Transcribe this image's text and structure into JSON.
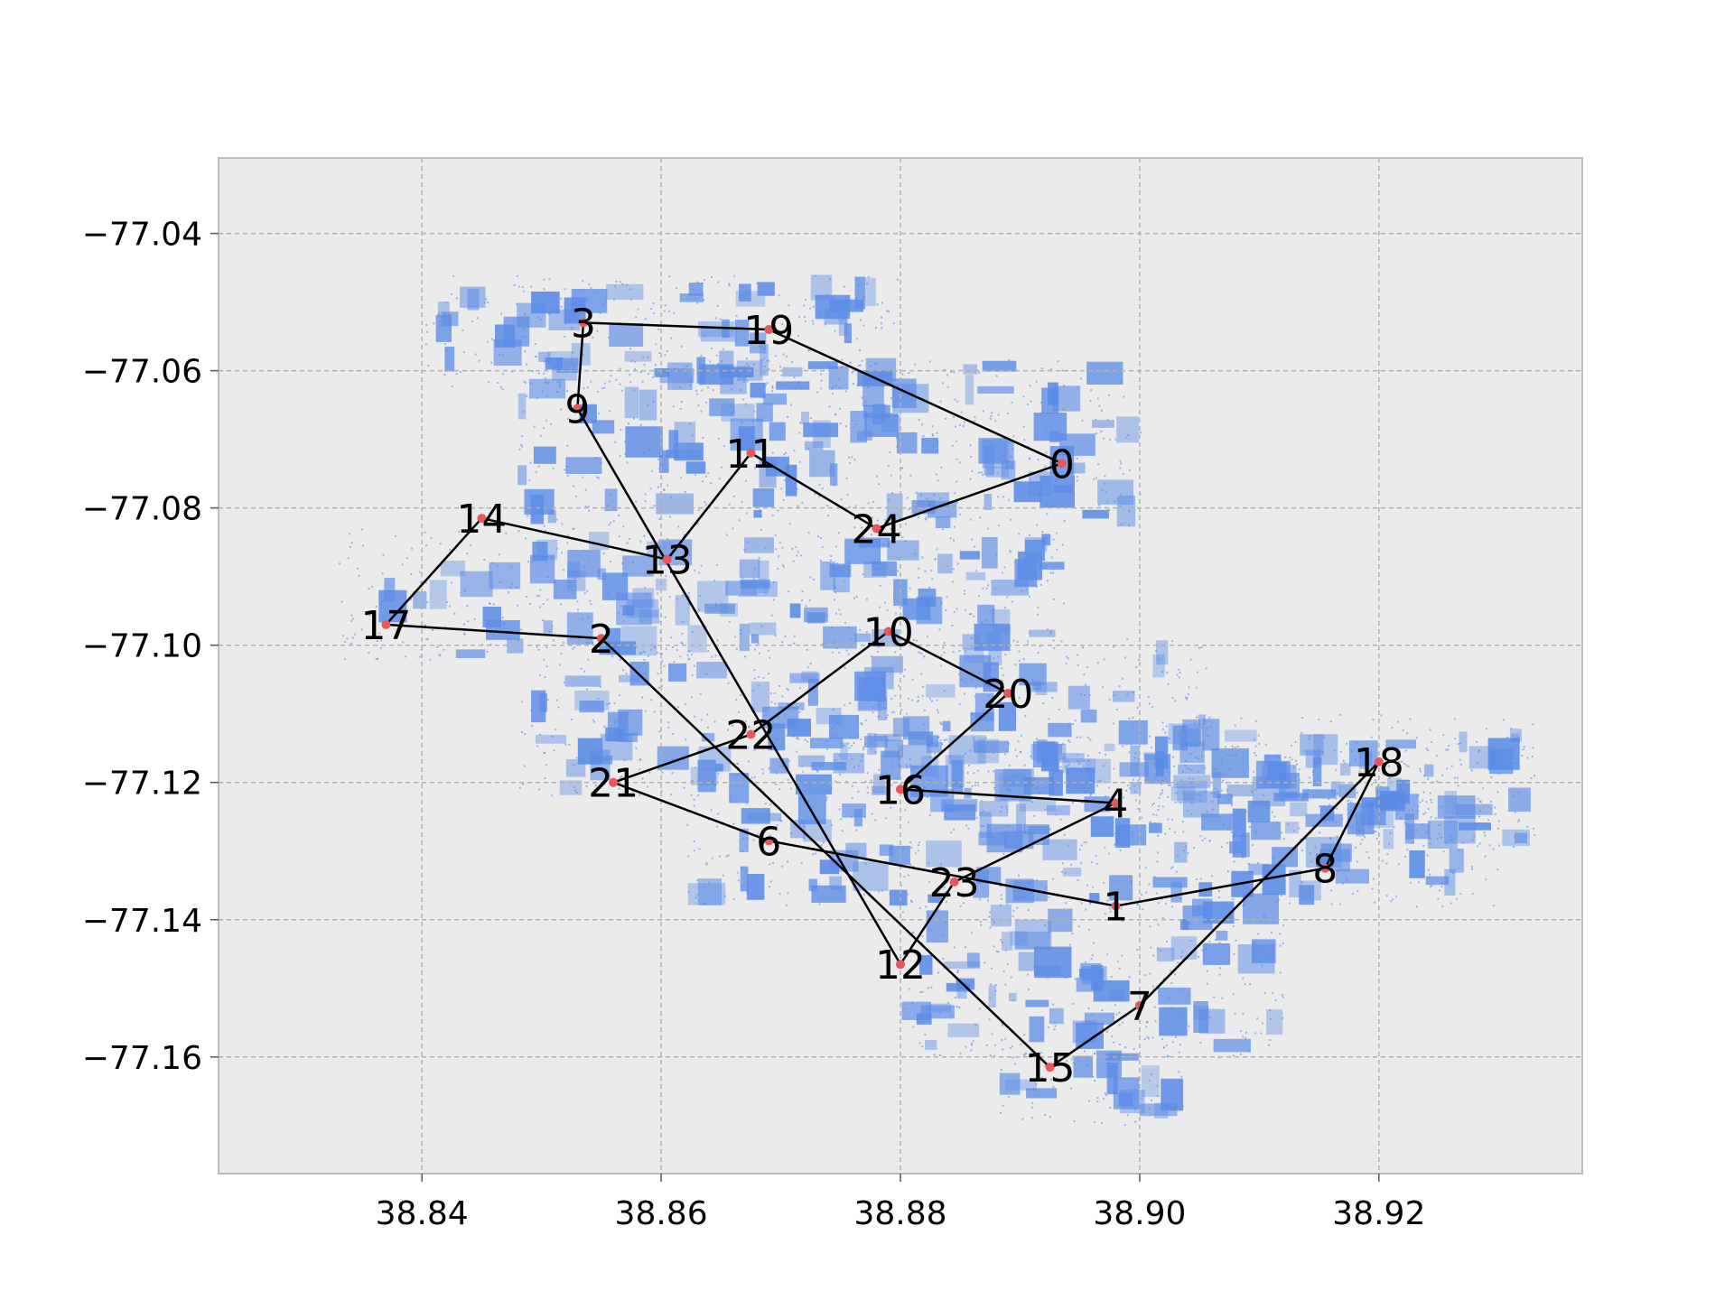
{
  "chart_data": {
    "type": "scatter",
    "title": "",
    "xlabel": "",
    "ylabel": "",
    "xlim": [
      38.823,
      38.937
    ],
    "ylim": [
      -77.177,
      -77.029
    ],
    "grid": true,
    "x_ticks": [
      {
        "value": 38.84,
        "label": "38.84"
      },
      {
        "value": 38.86,
        "label": "38.86"
      },
      {
        "value": 38.88,
        "label": "38.88"
      },
      {
        "value": 38.9,
        "label": "38.90"
      },
      {
        "value": 38.92,
        "label": "38.92"
      }
    ],
    "y_ticks": [
      {
        "value": -77.04,
        "label": "−77.04"
      },
      {
        "value": -77.06,
        "label": "−77.06"
      },
      {
        "value": -77.08,
        "label": "−77.08"
      },
      {
        "value": -77.1,
        "label": "−77.10"
      },
      {
        "value": -77.12,
        "label": "−77.12"
      },
      {
        "value": -77.14,
        "label": "−77.14"
      },
      {
        "value": -77.16,
        "label": "−77.16"
      }
    ],
    "colors": {
      "background": "#ebebeb",
      "cloud": "#5b8ce6",
      "route": "#000000",
      "node": "#e8575c",
      "grid": "#b0b0b0",
      "frame": "#bcbcbc"
    },
    "cloud_regions": [
      {
        "x": [
          38.84,
          38.88
        ],
        "y": [
          -77.063,
          -77.046
        ]
      },
      {
        "x": [
          38.848,
          38.9
        ],
        "y": [
          -77.083,
          -77.058
        ]
      },
      {
        "x": [
          38.833,
          38.894
        ],
        "y": [
          -77.102,
          -77.083
        ]
      },
      {
        "x": [
          38.848,
          38.906
        ],
        "y": [
          -77.122,
          -77.099
        ]
      },
      {
        "x": [
          38.862,
          38.93
        ],
        "y": [
          -77.138,
          -77.113
        ]
      },
      {
        "x": [
          38.88,
          38.912
        ],
        "y": [
          -77.16,
          -77.136
        ]
      },
      {
        "x": [
          38.888,
          38.904
        ],
        "y": [
          -77.17,
          -77.158
        ]
      },
      {
        "x": [
          38.901,
          38.933
        ],
        "y": [
          -77.13,
          -77.11
        ]
      }
    ],
    "nodes": [
      {
        "id": "0",
        "x": 38.8935,
        "y": -77.0735
      },
      {
        "id": "1",
        "x": 38.898,
        "y": -77.138
      },
      {
        "id": "2",
        "x": 38.855,
        "y": -77.099
      },
      {
        "id": "3",
        "x": 38.8535,
        "y": -77.053
      },
      {
        "id": "4",
        "x": 38.898,
        "y": -77.123
      },
      {
        "id": "6",
        "x": 38.869,
        "y": -77.1285
      },
      {
        "id": "7",
        "x": 38.9,
        "y": -77.1525
      },
      {
        "id": "8",
        "x": 38.9155,
        "y": -77.1325
      },
      {
        "id": "9",
        "x": 38.853,
        "y": -77.0655
      },
      {
        "id": "10",
        "x": 38.879,
        "y": -77.098
      },
      {
        "id": "11",
        "x": 38.8675,
        "y": -77.072
      },
      {
        "id": "12",
        "x": 38.88,
        "y": -77.1465
      },
      {
        "id": "13",
        "x": 38.8605,
        "y": -77.0875
      },
      {
        "id": "14",
        "x": 38.845,
        "y": -77.0815
      },
      {
        "id": "15",
        "x": 38.8925,
        "y": -77.1615
      },
      {
        "id": "16",
        "x": 38.88,
        "y": -77.121
      },
      {
        "id": "17",
        "x": 38.837,
        "y": -77.097
      },
      {
        "id": "18",
        "x": 38.92,
        "y": -77.117
      },
      {
        "id": "19",
        "x": 38.869,
        "y": -77.054
      },
      {
        "id": "20",
        "x": 38.889,
        "y": -77.107
      },
      {
        "id": "21",
        "x": 38.856,
        "y": -77.12
      },
      {
        "id": "22",
        "x": 38.8675,
        "y": -77.113
      },
      {
        "id": "23",
        "x": 38.8845,
        "y": -77.1345
      },
      {
        "id": "24",
        "x": 38.878,
        "y": -77.083
      }
    ],
    "route": [
      "0",
      "19",
      "3",
      "9",
      "12",
      "23",
      "4",
      "16",
      "20",
      "10",
      "22",
      "21",
      "6",
      "1",
      "8",
      "18",
      "7",
      "15",
      "2",
      "17",
      "14",
      "13",
      "11",
      "24",
      "0"
    ]
  }
}
